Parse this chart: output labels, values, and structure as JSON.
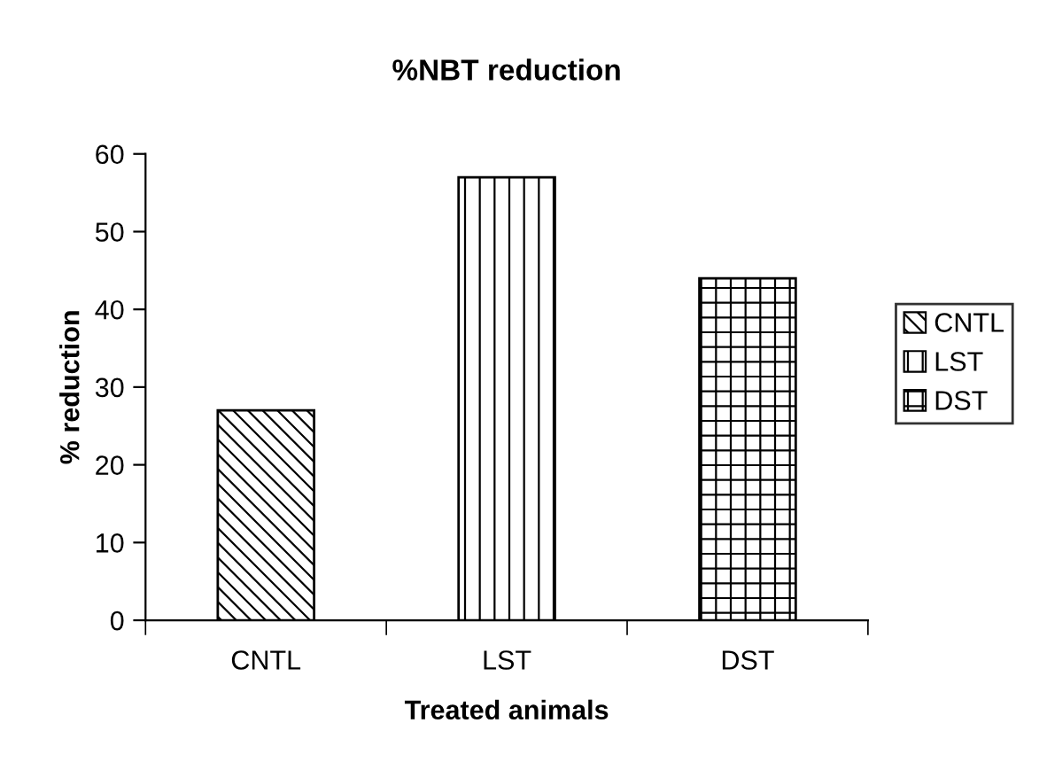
{
  "chart_data": {
    "type": "bar",
    "title": "%NBT reduction",
    "xlabel": "Treated animals",
    "ylabel": "% reduction",
    "categories": [
      "CNTL",
      "LST",
      "DST"
    ],
    "series": [
      {
        "name": "CNTL",
        "color": "#000000",
        "values": [
          27,
          null,
          null
        ]
      },
      {
        "name": "LST",
        "color": "#000000",
        "values": [
          null,
          57,
          null
        ]
      },
      {
        "name": "DST",
        "color": "#000000",
        "values": [
          null,
          null,
          44
        ]
      }
    ],
    "ylim": [
      0,
      60
    ],
    "yticks": [
      0,
      10,
      20,
      30,
      40,
      50,
      60
    ],
    "grid": false,
    "legend": "right"
  }
}
